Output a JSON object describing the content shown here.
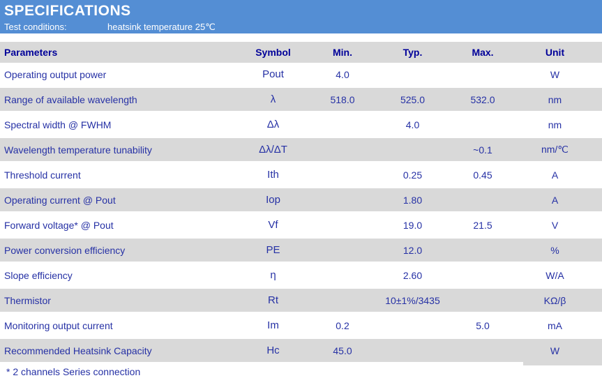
{
  "banner": {
    "title": "SPECIFICATIONS",
    "test_conditions_label": "Test conditions:",
    "test_conditions_value": "heatsink temperature 25℃"
  },
  "table": {
    "headers": [
      "Parameters",
      "Symbol",
      "Min.",
      "Typ.",
      "Max.",
      "Unit"
    ],
    "rows": [
      {
        "parameter": "Operating output power",
        "symbol": "Pout",
        "min": "4.0",
        "typ": "",
        "max": "",
        "unit": "W"
      },
      {
        "parameter": "Range of available wavelength",
        "symbol": "λ",
        "min": "518.0",
        "typ": "525.0",
        "max": "532.0",
        "unit": "nm"
      },
      {
        "parameter": "Spectral width @ FWHM",
        "symbol": "Δλ",
        "min": "",
        "typ": "4.0",
        "max": "",
        "unit": "nm"
      },
      {
        "parameter": "Wavelength temperature tunability",
        "symbol": "Δλ/ΔT",
        "min": "",
        "typ": "",
        "max": "~0.1",
        "unit": "nm/℃"
      },
      {
        "parameter": "Threshold current",
        "symbol": "Ith",
        "min": "",
        "typ": "0.25",
        "max": "0.45",
        "unit": "A"
      },
      {
        "parameter": "Operating current @ Pout",
        "symbol": "Iop",
        "min": "",
        "typ": "1.80",
        "max": "",
        "unit": "A"
      },
      {
        "parameter": "Forward voltage* @ Pout",
        "symbol": "Vf",
        "min": "",
        "typ": "19.0",
        "max": "21.5",
        "unit": "V"
      },
      {
        "parameter": "Power conversion efficiency",
        "symbol": "PE",
        "min": "",
        "typ": "12.0",
        "max": "",
        "unit": "%"
      },
      {
        "parameter": "Slope efficiency",
        "symbol": "η",
        "min": "",
        "typ": "2.60",
        "max": "",
        "unit": "W/A"
      },
      {
        "parameter": "Thermistor",
        "symbol": "Rt",
        "min": "",
        "typ": "10±1%/3435",
        "max": "",
        "unit": "KΩ/β"
      },
      {
        "parameter": "Monitoring output current",
        "symbol": "Im",
        "min": "0.2",
        "typ": "",
        "max": "5.0",
        "unit": "mA"
      },
      {
        "parameter": "Recommended Heatsink Capacity",
        "symbol": "Hc",
        "min": "45.0",
        "typ": "",
        "max": "",
        "unit": "W"
      }
    ]
  },
  "footnote": "* 2 channels Series connection",
  "colors": {
    "banner_blue": "#548ed4",
    "row_gray": "#d9d9d9",
    "header_text": "#000099",
    "body_text": "#2631a5",
    "banner_text": "#ffffff"
  }
}
